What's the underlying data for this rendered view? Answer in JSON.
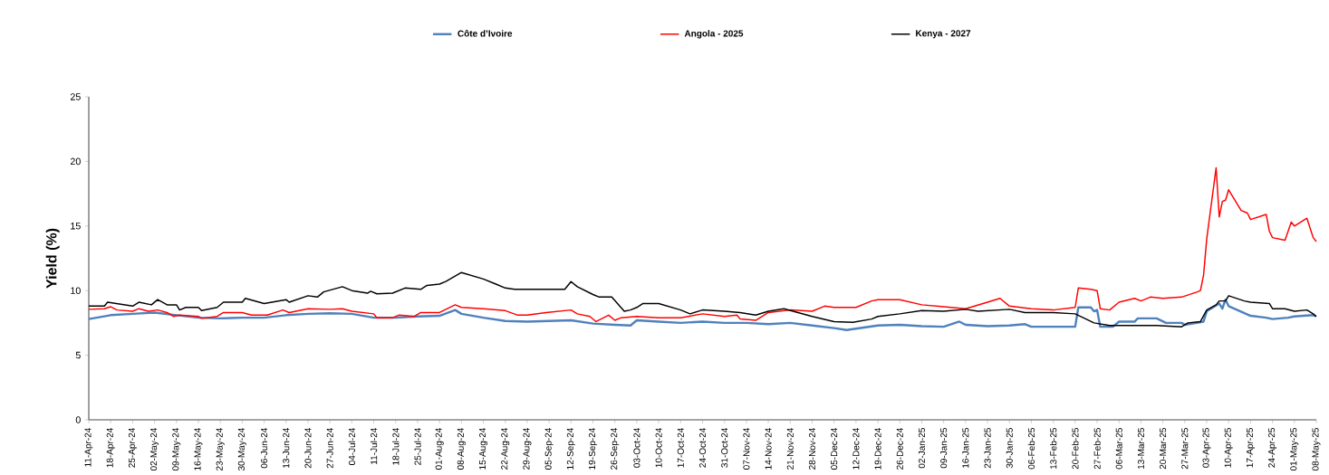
{
  "chart_data": {
    "type": "line",
    "ylabel": "Yield (%)",
    "legend": "top",
    "xlim": [
      "2024-04-11",
      "2025-05-08"
    ],
    "ylim": [
      0,
      25
    ],
    "yticks": [
      0,
      5,
      10,
      15,
      20,
      25
    ],
    "xticks": [
      {
        "value": "2024-04-11",
        "label": "11-Apr-24"
      },
      {
        "value": "2024-04-18",
        "label": "18-Apr-24"
      },
      {
        "value": "2024-04-25",
        "label": "25-Apr-24"
      },
      {
        "value": "2024-05-02",
        "label": "02-May-24"
      },
      {
        "value": "2024-05-09",
        "label": "09-May-24"
      },
      {
        "value": "2024-05-16",
        "label": "16-May-24"
      },
      {
        "value": "2024-05-23",
        "label": "23-May-24"
      },
      {
        "value": "2024-05-30",
        "label": "30-May-24"
      },
      {
        "value": "2024-06-06",
        "label": "06-Jun-24"
      },
      {
        "value": "2024-06-13",
        "label": "13-Jun-24"
      },
      {
        "value": "2024-06-20",
        "label": "20-Jun-24"
      },
      {
        "value": "2024-06-27",
        "label": "27-Jun-24"
      },
      {
        "value": "2024-07-04",
        "label": "04-Jul-24"
      },
      {
        "value": "2024-07-11",
        "label": "11-Jul-24"
      },
      {
        "value": "2024-07-18",
        "label": "18-Jul-24"
      },
      {
        "value": "2024-07-25",
        "label": "25-Jul-24"
      },
      {
        "value": "2024-08-01",
        "label": "01-Aug-24"
      },
      {
        "value": "2024-08-08",
        "label": "08-Aug-24"
      },
      {
        "value": "2024-08-15",
        "label": "15-Aug-24"
      },
      {
        "value": "2024-08-22",
        "label": "22-Aug-24"
      },
      {
        "value": "2024-08-29",
        "label": "29-Aug-24"
      },
      {
        "value": "2024-09-05",
        "label": "05-Sep-24"
      },
      {
        "value": "2024-09-12",
        "label": "12-Sep-24"
      },
      {
        "value": "2024-09-19",
        "label": "19-Sep-24"
      },
      {
        "value": "2024-09-26",
        "label": "26-Sep-24"
      },
      {
        "value": "2024-10-03",
        "label": "03-Oct-24"
      },
      {
        "value": "2024-10-10",
        "label": "10-Oct-24"
      },
      {
        "value": "2024-10-17",
        "label": "17-Oct-24"
      },
      {
        "value": "2024-10-24",
        "label": "24-Oct-24"
      },
      {
        "value": "2024-10-31",
        "label": "31-Oct-24"
      },
      {
        "value": "2024-11-07",
        "label": "07-Nov-24"
      },
      {
        "value": "2024-11-14",
        "label": "14-Nov-24"
      },
      {
        "value": "2024-11-21",
        "label": "21-Nov-24"
      },
      {
        "value": "2024-11-28",
        "label": "28-Nov-24"
      },
      {
        "value": "2024-12-05",
        "label": "05-Dec-24"
      },
      {
        "value": "2024-12-12",
        "label": "12-Dec-24"
      },
      {
        "value": "2024-12-19",
        "label": "19-Dec-24"
      },
      {
        "value": "2024-12-26",
        "label": "26-Dec-24"
      },
      {
        "value": "2025-01-02",
        "label": "02-Jan-25"
      },
      {
        "value": "2025-01-09",
        "label": "09-Jan-25"
      },
      {
        "value": "2025-01-16",
        "label": "16-Jan-25"
      },
      {
        "value": "2025-01-23",
        "label": "23-Jan-25"
      },
      {
        "value": "2025-01-30",
        "label": "30-Jan-25"
      },
      {
        "value": "2025-02-06",
        "label": "06-Feb-25"
      },
      {
        "value": "2025-02-13",
        "label": "13-Feb-25"
      },
      {
        "value": "2025-02-20",
        "label": "20-Feb-25"
      },
      {
        "value": "2025-02-27",
        "label": "27-Feb-25"
      },
      {
        "value": "2025-03-06",
        "label": "06-Mar-25"
      },
      {
        "value": "2025-03-13",
        "label": "13-Mar-25"
      },
      {
        "value": "2025-03-20",
        "label": "20-Mar-25"
      },
      {
        "value": "2025-03-27",
        "label": "27-Mar-25"
      },
      {
        "value": "2025-04-03",
        "label": "03-Apr-25"
      },
      {
        "value": "2025-04-10",
        "label": "10-Apr-25"
      },
      {
        "value": "2025-04-17",
        "label": "17-Apr-25"
      },
      {
        "value": "2025-04-24",
        "label": "24-Apr-25"
      },
      {
        "value": "2025-05-01",
        "label": "01-May-25"
      },
      {
        "value": "2025-05-08",
        "label": "08-May-25"
      }
    ],
    "series": [
      {
        "name": "Côte d’Ivoire",
        "color": "#4f81bd",
        "x": [
          "2024-04-11",
          "2024-04-18",
          "2024-04-25",
          "2024-05-02",
          "2024-05-09",
          "2024-05-16",
          "2024-05-23",
          "2024-05-30",
          "2024-06-06",
          "2024-06-13",
          "2024-06-20",
          "2024-06-27",
          "2024-07-04",
          "2024-07-11",
          "2024-07-18",
          "2024-07-25",
          "2024-08-01",
          "2024-08-06",
          "2024-08-08",
          "2024-08-15",
          "2024-08-22",
          "2024-08-29",
          "2024-09-05",
          "2024-09-12",
          "2024-09-19",
          "2024-09-26",
          "2024-10-01",
          "2024-10-03",
          "2024-10-10",
          "2024-10-17",
          "2024-10-24",
          "2024-10-31",
          "2024-11-07",
          "2024-11-14",
          "2024-11-21",
          "2024-11-28",
          "2024-12-05",
          "2024-12-09",
          "2024-12-19",
          "2024-12-26",
          "2025-01-02",
          "2025-01-09",
          "2025-01-14",
          "2025-01-16",
          "2025-01-23",
          "2025-01-30",
          "2025-02-04",
          "2025-02-06",
          "2025-02-13",
          "2025-02-20",
          "2025-02-21",
          "2025-02-25",
          "2025-02-26",
          "2025-02-27",
          "2025-02-28",
          "2025-03-04",
          "2025-03-06",
          "2025-03-11",
          "2025-03-12",
          "2025-03-18",
          "2025-03-21",
          "2025-03-26",
          "2025-03-27",
          "2025-04-02",
          "2025-04-03",
          "2025-04-07",
          "2025-04-08",
          "2025-04-09",
          "2025-04-10",
          "2025-04-17",
          "2025-04-22",
          "2025-04-24",
          "2025-04-29",
          "2025-05-01",
          "2025-05-07",
          "2025-05-08"
        ],
        "values": [
          7.8,
          8.1,
          8.2,
          8.3,
          8.1,
          7.9,
          7.85,
          7.9,
          7.9,
          8.1,
          8.2,
          8.25,
          8.2,
          7.9,
          7.9,
          8.0,
          8.05,
          8.5,
          8.2,
          7.9,
          7.65,
          7.6,
          7.65,
          7.7,
          7.45,
          7.35,
          7.3,
          7.7,
          7.6,
          7.5,
          7.6,
          7.5,
          7.5,
          7.4,
          7.5,
          7.3,
          7.1,
          6.95,
          7.3,
          7.35,
          7.25,
          7.2,
          7.6,
          7.35,
          7.25,
          7.3,
          7.4,
          7.2,
          7.2,
          7.2,
          8.7,
          8.7,
          8.4,
          8.5,
          7.2,
          7.2,
          7.6,
          7.6,
          7.85,
          7.85,
          7.5,
          7.5,
          7.35,
          7.6,
          8.4,
          9.0,
          8.6,
          9.3,
          8.8,
          8.05,
          7.9,
          7.8,
          7.9,
          8.0,
          8.1,
          8.0
        ]
      },
      {
        "name": "Angola - 2025",
        "color": "#ff0000",
        "x": [
          "2024-04-11",
          "2024-04-16",
          "2024-04-18",
          "2024-04-20",
          "2024-04-25",
          "2024-04-27",
          "2024-04-30",
          "2024-05-03",
          "2024-05-06",
          "2024-05-08",
          "2024-05-10",
          "2024-05-16",
          "2024-05-17",
          "2024-05-22",
          "2024-05-24",
          "2024-05-30",
          "2024-06-02",
          "2024-06-07",
          "2024-06-12",
          "2024-06-14",
          "2024-06-20",
          "2024-06-27",
          "2024-07-01",
          "2024-07-04",
          "2024-07-11",
          "2024-07-12",
          "2024-07-17",
          "2024-07-19",
          "2024-07-24",
          "2024-07-26",
          "2024-08-01",
          "2024-08-06",
          "2024-08-08",
          "2024-08-15",
          "2024-08-22",
          "2024-08-26",
          "2024-08-29",
          "2024-09-04",
          "2024-09-12",
          "2024-09-14",
          "2024-09-18",
          "2024-09-20",
          "2024-09-24",
          "2024-09-26",
          "2024-09-28",
          "2024-10-03",
          "2024-10-10",
          "2024-10-17",
          "2024-10-24",
          "2024-10-31",
          "2024-11-04",
          "2024-11-05",
          "2024-11-10",
          "2024-11-14",
          "2024-11-21",
          "2024-11-28",
          "2024-12-02",
          "2024-12-05",
          "2024-12-12",
          "2024-12-17",
          "2024-12-19",
          "2024-12-26",
          "2025-01-02",
          "2025-01-09",
          "2025-01-16",
          "2025-01-23",
          "2025-01-27",
          "2025-01-30",
          "2025-02-06",
          "2025-02-13",
          "2025-02-20",
          "2025-02-21",
          "2025-02-25",
          "2025-02-27",
          "2025-02-28",
          "2025-03-03",
          "2025-03-06",
          "2025-03-11",
          "2025-03-13",
          "2025-03-16",
          "2025-03-20",
          "2025-03-26",
          "2025-03-31",
          "2025-04-01",
          "2025-04-02",
          "2025-04-03",
          "2025-04-06",
          "2025-04-07",
          "2025-04-08",
          "2025-04-09",
          "2025-04-10",
          "2025-04-14",
          "2025-04-16",
          "2025-04-17",
          "2025-04-22",
          "2025-04-23",
          "2025-04-24",
          "2025-04-28",
          "2025-04-30",
          "2025-05-01",
          "2025-05-05",
          "2025-05-07",
          "2025-05-08"
        ],
        "values": [
          8.55,
          8.6,
          8.75,
          8.5,
          8.4,
          8.6,
          8.4,
          8.5,
          8.3,
          8.0,
          8.1,
          8.0,
          7.85,
          8.0,
          8.3,
          8.3,
          8.1,
          8.1,
          8.5,
          8.3,
          8.6,
          8.55,
          8.6,
          8.4,
          8.2,
          7.9,
          7.9,
          8.1,
          8.0,
          8.3,
          8.3,
          8.9,
          8.7,
          8.6,
          8.45,
          8.1,
          8.1,
          8.3,
          8.5,
          8.2,
          8.0,
          7.6,
          8.1,
          7.7,
          7.9,
          8.0,
          7.9,
          7.9,
          8.2,
          8.0,
          8.1,
          7.8,
          7.7,
          8.3,
          8.5,
          8.4,
          8.8,
          8.7,
          8.7,
          9.2,
          9.3,
          9.3,
          8.9,
          8.75,
          8.6,
          9.1,
          9.4,
          8.8,
          8.6,
          8.5,
          8.7,
          10.2,
          10.1,
          10.0,
          8.6,
          8.5,
          9.1,
          9.4,
          9.2,
          9.5,
          9.4,
          9.5,
          9.9,
          10.0,
          11.2,
          14.0,
          19.5,
          15.7,
          16.9,
          17.0,
          17.8,
          16.2,
          16.0,
          15.5,
          15.9,
          14.6,
          14.1,
          13.9,
          15.3,
          15.0,
          15.6,
          14.1,
          13.8
        ]
      },
      {
        "name": "Kenya -  2027",
        "color": "#000000",
        "x": [
          "2024-04-11",
          "2024-04-16",
          "2024-04-17",
          "2024-04-25",
          "2024-04-27",
          "2024-05-01",
          "2024-05-03",
          "2024-05-06",
          "2024-05-09",
          "2024-05-10",
          "2024-05-12",
          "2024-05-16",
          "2024-05-17",
          "2024-05-22",
          "2024-05-24",
          "2024-05-30",
          "2024-05-31",
          "2024-06-06",
          "2024-06-13",
          "2024-06-14",
          "2024-06-20",
          "2024-06-23",
          "2024-06-25",
          "2024-07-01",
          "2024-07-04",
          "2024-07-09",
          "2024-07-10",
          "2024-07-12",
          "2024-07-17",
          "2024-07-21",
          "2024-07-26",
          "2024-07-28",
          "2024-08-01",
          "2024-08-03",
          "2024-08-08",
          "2024-08-15",
          "2024-08-19",
          "2024-08-22",
          "2024-08-25",
          "2024-09-05",
          "2024-09-10",
          "2024-09-12",
          "2024-09-14",
          "2024-09-19",
          "2024-09-21",
          "2024-09-25",
          "2024-09-29",
          "2024-10-01",
          "2024-10-03",
          "2024-10-05",
          "2024-10-10",
          "2024-10-17",
          "2024-10-20",
          "2024-10-24",
          "2024-10-31",
          "2024-11-05",
          "2024-11-10",
          "2024-11-14",
          "2024-11-19",
          "2024-11-28",
          "2024-12-05",
          "2024-12-11",
          "2024-12-17",
          "2024-12-19",
          "2024-12-26",
          "2025-01-02",
          "2025-01-09",
          "2025-01-16",
          "2025-01-20",
          "2025-01-30",
          "2025-02-04",
          "2025-02-13",
          "2025-02-20",
          "2025-02-26",
          "2025-03-03",
          "2025-03-13",
          "2025-03-18",
          "2025-03-26",
          "2025-03-28",
          "2025-04-01",
          "2025-04-03",
          "2025-04-06",
          "2025-04-07",
          "2025-04-09",
          "2025-04-10",
          "2025-04-15",
          "2025-04-17",
          "2025-04-23",
          "2025-04-24",
          "2025-04-28",
          "2025-05-01",
          "2025-05-05",
          "2025-05-07",
          "2025-05-08"
        ],
        "values": [
          8.8,
          8.8,
          9.1,
          8.8,
          9.1,
          8.9,
          9.3,
          8.9,
          8.9,
          8.5,
          8.7,
          8.7,
          8.45,
          8.7,
          9.1,
          9.1,
          9.4,
          9.0,
          9.3,
          9.1,
          9.6,
          9.5,
          9.9,
          10.3,
          10.0,
          9.8,
          9.95,
          9.75,
          9.8,
          10.2,
          10.1,
          10.4,
          10.5,
          10.7,
          11.4,
          10.9,
          10.5,
          10.2,
          10.1,
          10.1,
          10.1,
          10.7,
          10.3,
          9.7,
          9.5,
          9.5,
          8.4,
          8.5,
          8.7,
          9.0,
          9.0,
          8.5,
          8.2,
          8.5,
          8.4,
          8.3,
          8.1,
          8.4,
          8.6,
          8.0,
          7.6,
          7.55,
          7.8,
          8.0,
          8.2,
          8.45,
          8.4,
          8.55,
          8.4,
          8.55,
          8.3,
          8.3,
          8.2,
          7.5,
          7.3,
          7.3,
          7.3,
          7.2,
          7.5,
          7.6,
          8.5,
          8.9,
          9.2,
          9.2,
          9.6,
          9.2,
          9.1,
          9.0,
          8.6,
          8.6,
          8.4,
          8.5,
          8.2,
          8.0
        ]
      }
    ]
  }
}
